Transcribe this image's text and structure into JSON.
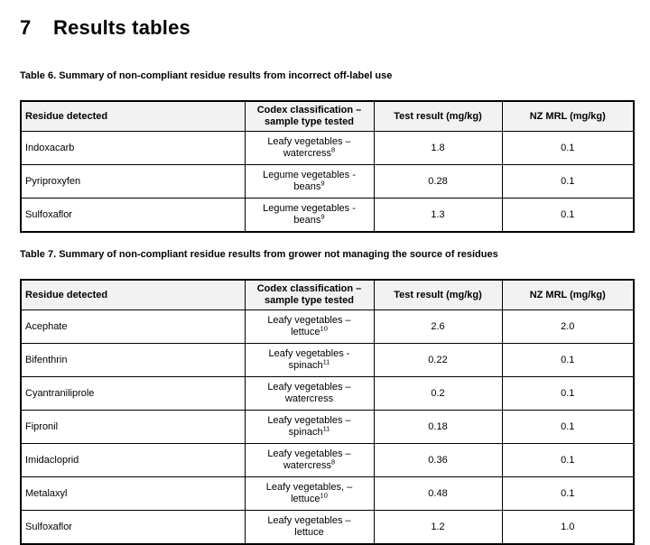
{
  "page": {
    "heading_number": "7",
    "heading_title": "Results tables"
  },
  "columns": {
    "residue": "Residue detected",
    "codex": "Codex classification – sample type tested",
    "test": "Test result (mg/kg)",
    "mrl": "NZ MRL (mg/kg)"
  },
  "table6": {
    "caption": "Table 6. Summary of non-compliant residue results from incorrect off-label use",
    "rows": [
      {
        "residue": "Indoxacarb",
        "codex_line1": "Leafy vegetables –",
        "codex_line2": "watercress",
        "codex_sup": "8",
        "test": "1.8",
        "mrl": "0.1"
      },
      {
        "residue": "Pyriproxyfen",
        "codex_line1": "Legume vegetables -",
        "codex_line2": "beans",
        "codex_sup": "9",
        "test": "0.28",
        "mrl": "0.1"
      },
      {
        "residue": "Sulfoxaflor",
        "codex_line1": "Legume vegetables -",
        "codex_line2": "beans",
        "codex_sup": "9",
        "test": "1.3",
        "mrl": "0.1"
      }
    ]
  },
  "table7": {
    "caption": "Table 7. Summary of non-compliant residue results from grower not managing the source of residues",
    "rows": [
      {
        "residue": "Acephate",
        "codex_line1": "Leafy vegetables –",
        "codex_line2": "lettuce",
        "codex_sup": "10",
        "test": "2.6",
        "mrl": "2.0"
      },
      {
        "residue": "Bifenthrin",
        "codex_line1": "Leafy vegetables -",
        "codex_line2": "spinach",
        "codex_sup": "11",
        "test": "0.22",
        "mrl": "0.1"
      },
      {
        "residue": "Cyantraniliprole",
        "codex_line1": "Leafy vegetables –",
        "codex_line2": "watercress",
        "codex_sup": "",
        "test": "0.2",
        "mrl": "0.1"
      },
      {
        "residue": "Fipronil",
        "codex_line1": "Leafy vegetables –",
        "codex_line2": "spinach",
        "codex_sup": "11",
        "test": "0.18",
        "mrl": "0.1"
      },
      {
        "residue": "Imidacloprid",
        "codex_line1": "Leafy vegetables –",
        "codex_line2": "watercress",
        "codex_sup": "8",
        "test": "0.36",
        "mrl": "0.1"
      },
      {
        "residue": "Metalaxyl",
        "codex_line1": "Leafy vegetables, –",
        "codex_line2": "lettuce",
        "codex_sup": "10",
        "test": "0.48",
        "mrl": "0.1"
      },
      {
        "residue": "Sulfoxaflor",
        "codex_line1": "Leafy vegetables –",
        "codex_line2": "lettuce",
        "codex_sup": "",
        "test": "1.2",
        "mrl": "1.0"
      }
    ]
  }
}
